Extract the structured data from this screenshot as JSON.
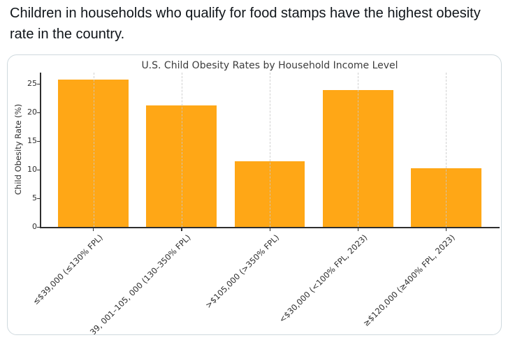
{
  "post": {
    "text": "Children in households who qualify for food stamps have the highest obesity rate in the country."
  },
  "chart_data": {
    "type": "bar",
    "title": "U.S. Child Obesity Rates by Household Income Level",
    "xlabel": "",
    "ylabel": "Child Obesity Rate (%)",
    "categories": [
      "≤$39,000 (≤130% FPL)",
      "39, 001–105, 000 (130–350% FPL)",
      ">$105,000 (>350% FPL)",
      "<$30,000 (<100% FPL, 2023)",
      "≥$120,000 (≥400% FPL, 2023)"
    ],
    "values": [
      25.8,
      21.2,
      11.5,
      24.0,
      10.3
    ],
    "yticks": [
      0,
      5,
      10,
      15,
      20,
      25
    ],
    "ylim": [
      0,
      27
    ],
    "xtick_label_rotation_deg": 45,
    "grid": "vertical dashed lines at bar centers",
    "legend": "none",
    "bar_color": "#FFA716",
    "axis_color": "#2e2e2e",
    "grid_color": "#cccccc",
    "title_color": "#3d3d3d"
  },
  "card": {
    "border_color": "#cfd9de"
  }
}
